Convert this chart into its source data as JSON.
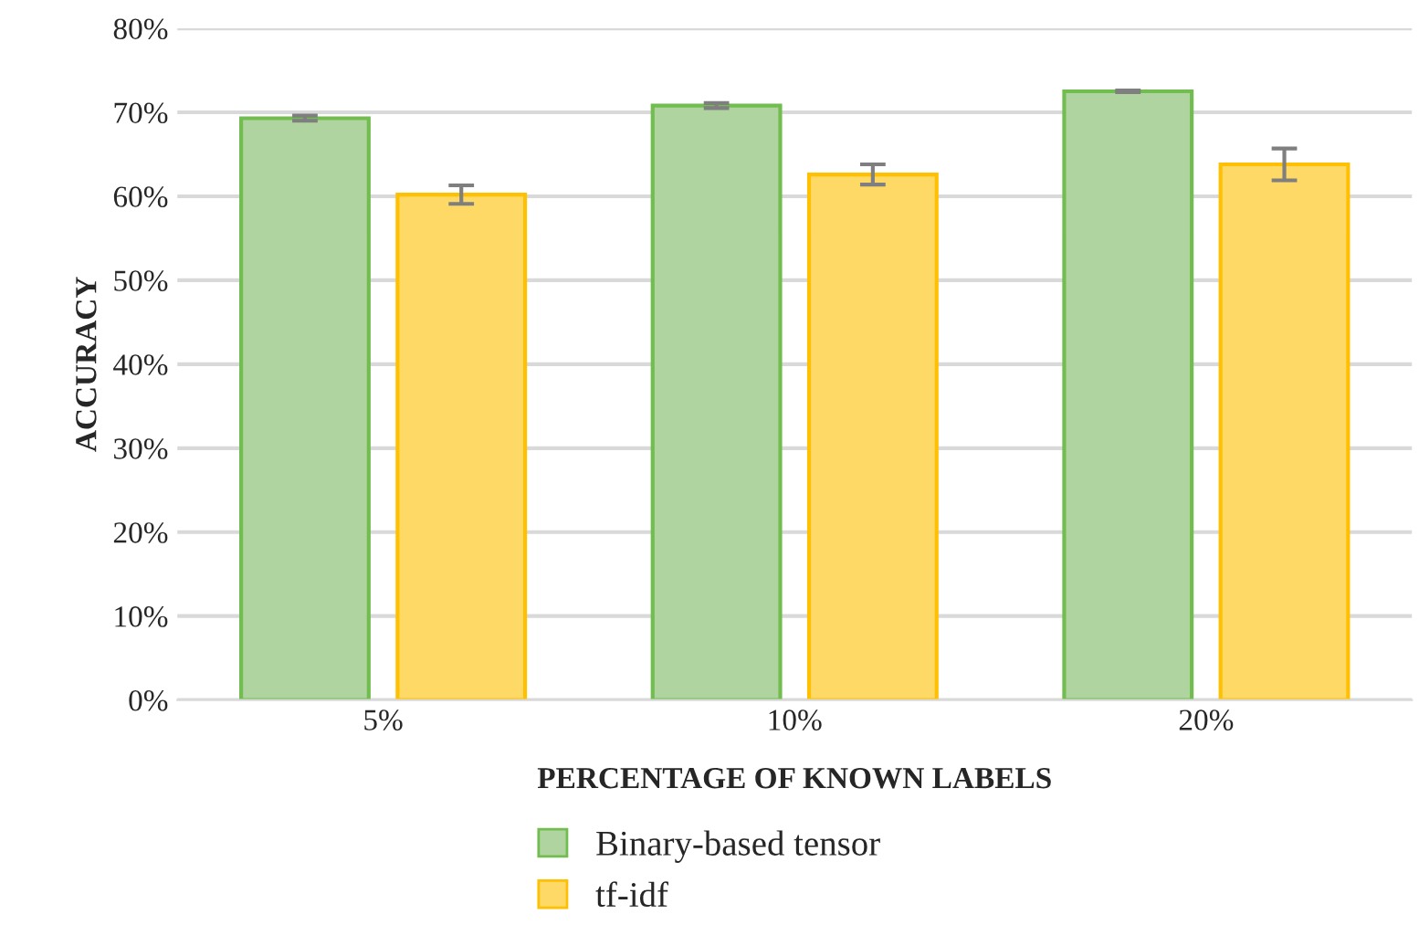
{
  "chart_data": {
    "type": "bar",
    "xlabel": "PERCENTAGE OF KNOWN LABELS",
    "ylabel": "ACCURACY",
    "categories": [
      "5%",
      "10%",
      "20%"
    ],
    "series": [
      {
        "name": "Binary-based tensor",
        "color": "#b0d4a0",
        "values": [
          69.3,
          70.8,
          72.5
        ],
        "errors": [
          0.3,
          0.3,
          0.1
        ]
      },
      {
        "name": "tf-idf",
        "color": "#ffd966",
        "values": [
          60.2,
          62.6,
          63.8
        ],
        "errors": [
          1.1,
          1.2,
          1.9
        ]
      }
    ],
    "ylim": [
      0,
      80
    ],
    "yticks": [
      {
        "value": 0,
        "label": "0%"
      },
      {
        "value": 10,
        "label": "10%"
      },
      {
        "value": 20,
        "label": "20%"
      },
      {
        "value": 30,
        "label": "30%"
      },
      {
        "value": 40,
        "label": "40%"
      },
      {
        "value": 50,
        "label": "50%"
      },
      {
        "value": 60,
        "label": "60%"
      },
      {
        "value": 70,
        "label": "70%"
      },
      {
        "value": 80,
        "label": "80%"
      }
    ],
    "grid": "y",
    "legend": "bottom"
  }
}
